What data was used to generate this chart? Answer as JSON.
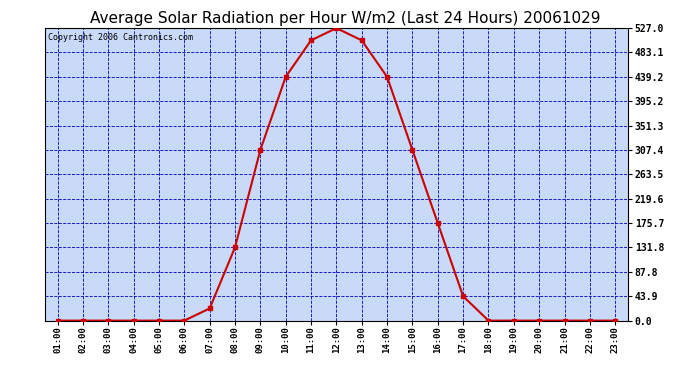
{
  "title": "Average Solar Radiation per Hour W/m2 (Last 24 Hours) 20061029",
  "copyright": "Copyright 2006 Cantronics.com",
  "hours": [
    "01:00",
    "02:00",
    "03:00",
    "04:00",
    "05:00",
    "06:00",
    "07:00",
    "08:00",
    "09:00",
    "10:00",
    "11:00",
    "12:00",
    "13:00",
    "14:00",
    "15:00",
    "16:00",
    "17:00",
    "18:00",
    "19:00",
    "20:00",
    "21:00",
    "22:00",
    "23:00"
  ],
  "values": [
    0.0,
    0.0,
    0.0,
    0.0,
    0.0,
    0.0,
    21.9,
    131.8,
    307.4,
    439.2,
    505.0,
    527.0,
    505.0,
    439.2,
    307.4,
    175.7,
    43.9,
    0.0,
    0.0,
    0.0,
    0.0,
    0.0,
    0.0
  ],
  "yticks": [
    0.0,
    43.9,
    87.8,
    131.8,
    175.7,
    219.6,
    263.5,
    307.4,
    351.3,
    395.2,
    439.2,
    483.1,
    527.0
  ],
  "ymax": 527.0,
  "line_color": "#cc0000",
  "bg_color": "#c8daf8",
  "grid_color": "#0000bb",
  "title_fontsize": 11,
  "copyright_fontsize": 6
}
